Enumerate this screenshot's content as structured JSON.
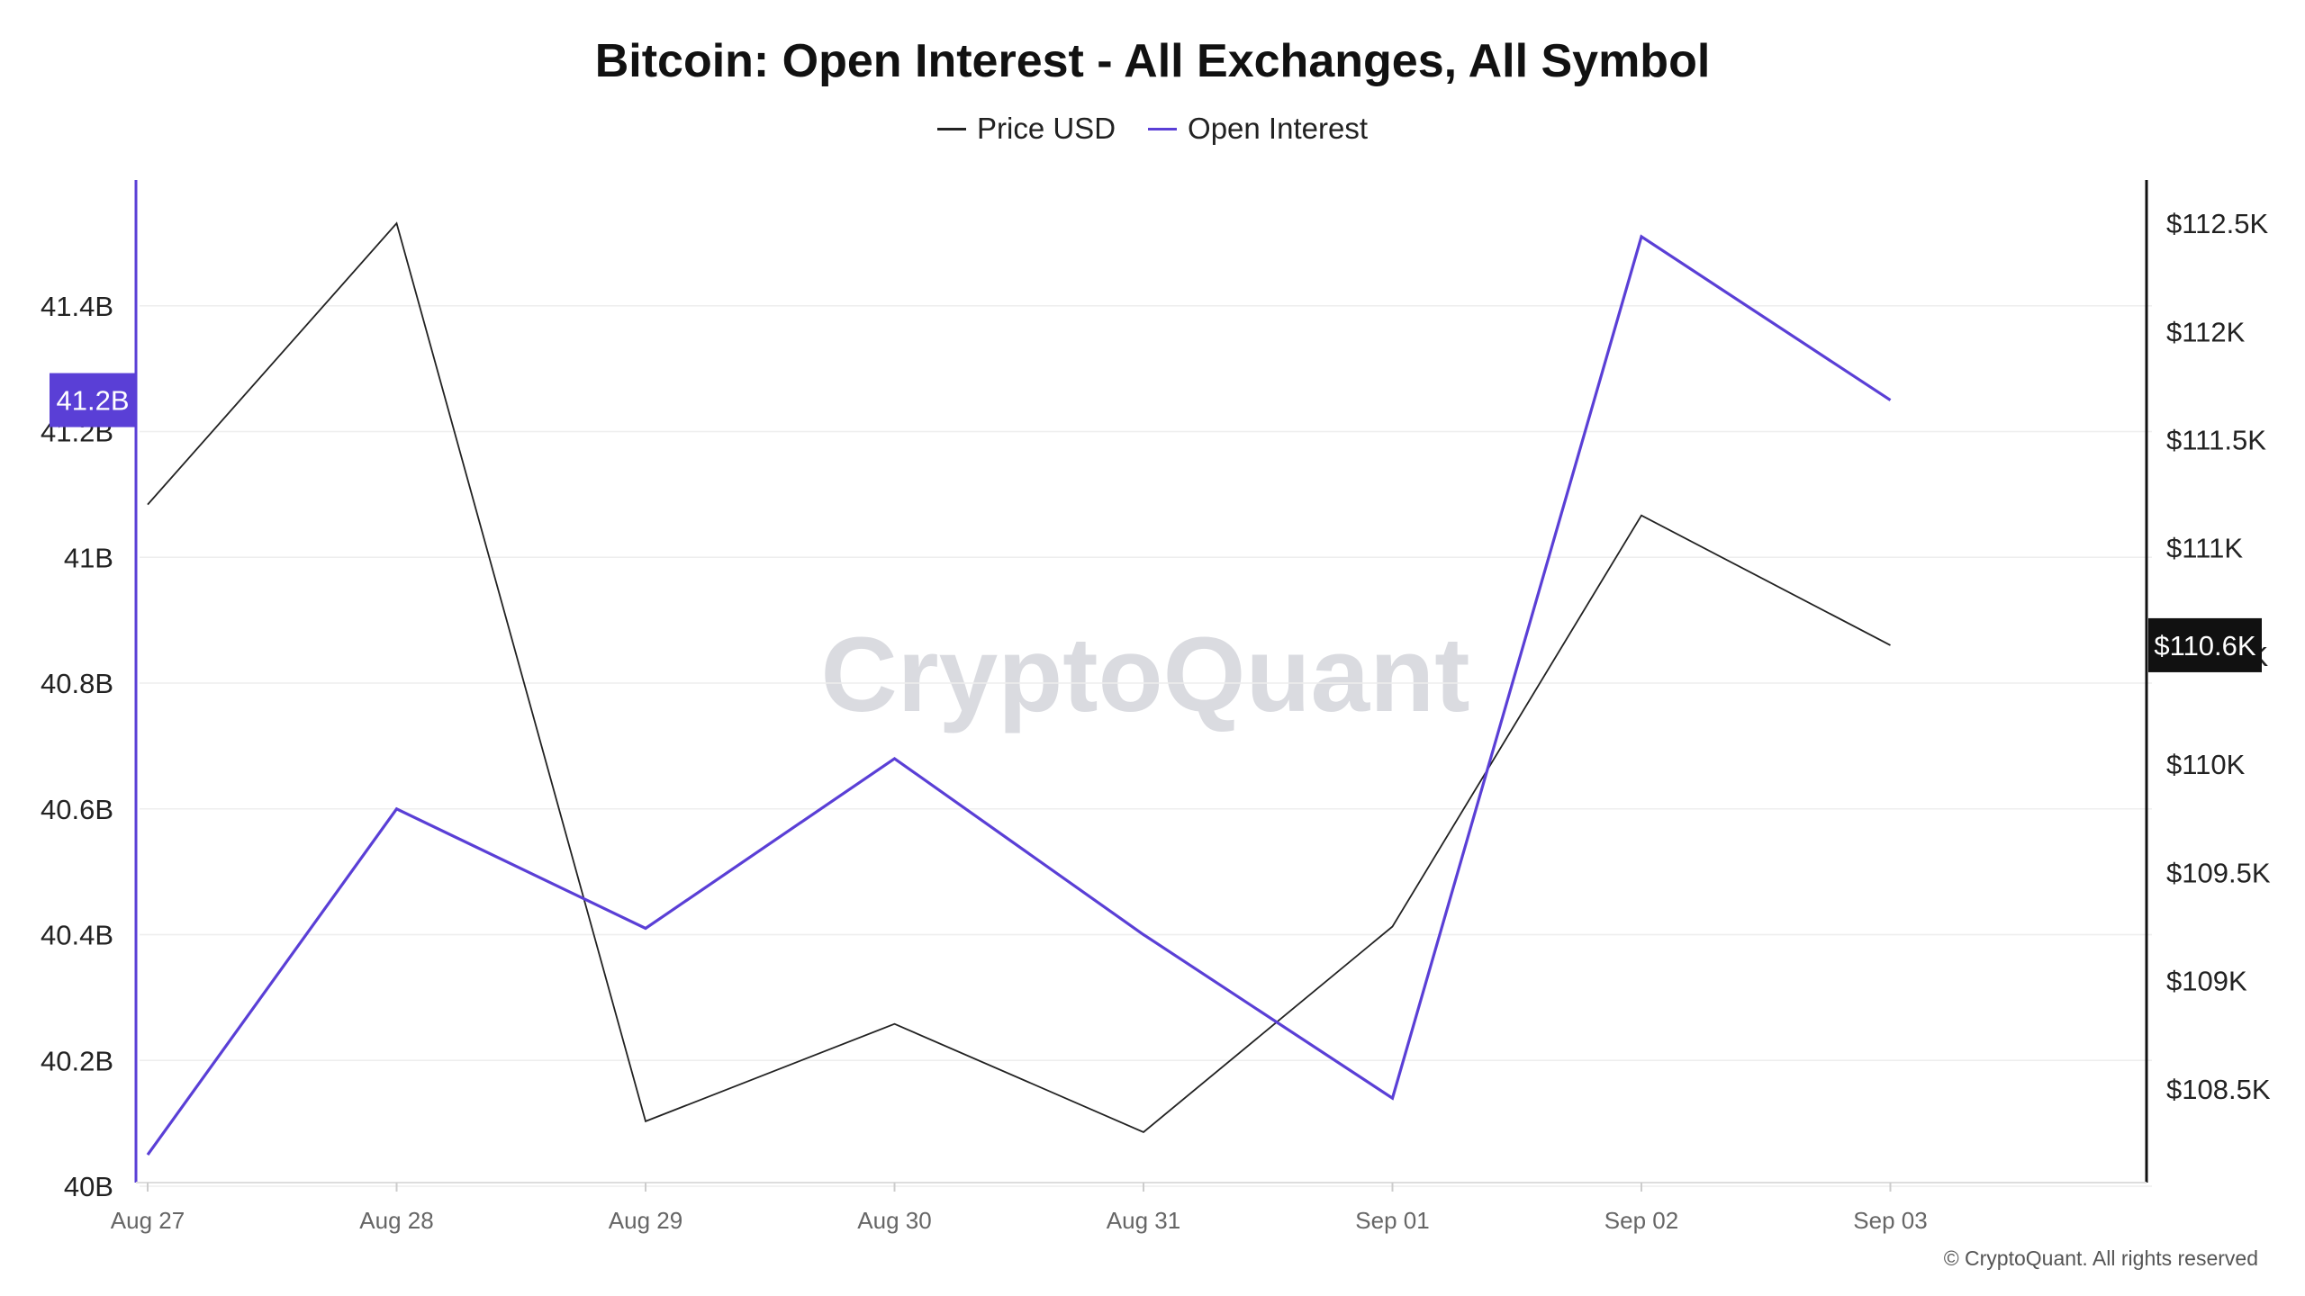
{
  "chart_data": {
    "type": "line",
    "title": "Bitcoin: Open Interest - All Exchanges, All Symbol",
    "categories": [
      "Aug 27",
      "Aug 28",
      "Aug 29",
      "Aug 30",
      "Aug 31",
      "Sep 01",
      "Sep 02",
      "Sep 03"
    ],
    "series": [
      {
        "name": "Price USD",
        "axis": "right",
        "color": "#222222",
        "values": [
          111200,
          112500,
          108350,
          108800,
          108300,
          109250,
          111150,
          110550
        ]
      },
      {
        "name": "Open Interest",
        "axis": "left",
        "color": "#5a3fd6",
        "values": [
          40050000000,
          40600000000,
          40410000000,
          40680000000,
          40400000000,
          40140000000,
          41510000000,
          41250000000
        ]
      }
    ],
    "left_axis": {
      "min": 40000000000,
      "max": 41600000000,
      "ticks": [
        40000000000,
        40200000000,
        40400000000,
        40600000000,
        40800000000,
        41000000000,
        41200000000,
        41400000000
      ],
      "tick_labels": [
        "40B",
        "40.2B",
        "40.4B",
        "40.6B",
        "40.8B",
        "41B",
        "41.2B",
        "41.4B"
      ]
    },
    "right_axis": {
      "min": 108050,
      "max": 112700,
      "ticks": [
        108500,
        109000,
        109500,
        110000,
        110500,
        111000,
        111500,
        112000,
        112500
      ],
      "tick_labels": [
        "$108.5K",
        "$109K",
        "$109.5K",
        "$110K",
        "$110.5K",
        "$111K",
        "$111.5K",
        "$112K",
        "$112.5K"
      ]
    },
    "left_marker": {
      "label": "41.2B",
      "value": 41250000000,
      "color": "#5a3fd6"
    },
    "right_marker": {
      "label": "$110.6K",
      "value": 110550,
      "color": "#111111"
    },
    "legend_position": "top-center",
    "grid": true
  },
  "watermark": "CryptoQuant",
  "copyright": "© CryptoQuant. All rights reserved"
}
